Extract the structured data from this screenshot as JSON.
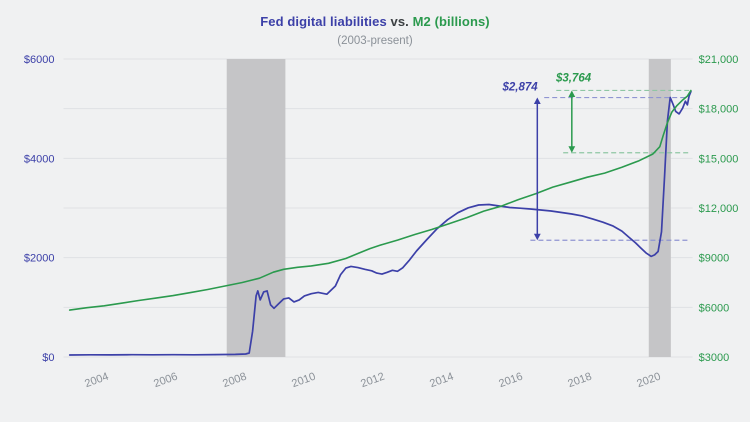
{
  "title": {
    "part1": "Fed digital liabilities",
    "part2": "vs.",
    "part3": "M2 (billions)"
  },
  "subtitle": "(2003-present)",
  "colors": {
    "background": "#f0f1f2",
    "blue": "#3c40a8",
    "green": "#2b9a4e",
    "blue_dash": "#9095d2",
    "green_dash": "#8fc6a4",
    "band": "#c5c5c7",
    "grid": "#dfe1e4",
    "axis_gray": "#8b9198",
    "vs_gray": "#3c4043"
  },
  "chart_data": {
    "type": "line",
    "title": "Fed digital liabilities vs. M2 (billions)",
    "subtitle": "(2003-present)",
    "grid": true,
    "legend_position": "none",
    "x_range": [
      2002.82,
      2021.05
    ],
    "x_ticks": [
      {
        "label": "2004",
        "value": 2004
      },
      {
        "label": "2006",
        "value": 2006
      },
      {
        "label": "2008",
        "value": 2008
      },
      {
        "label": "2010",
        "value": 2010
      },
      {
        "label": "2012",
        "value": 2012
      },
      {
        "label": "2014",
        "value": 2014
      },
      {
        "label": "2016",
        "value": 2016
      },
      {
        "label": "2018",
        "value": 2018
      },
      {
        "label": "2020",
        "value": 2020
      }
    ],
    "left_axis": {
      "range": [
        0,
        6000
      ],
      "ticks": [
        "$0",
        "$2000",
        "$4000",
        "$6000"
      ],
      "tick_values": [
        0,
        2000,
        4000,
        6000
      ],
      "color_ref": "blue"
    },
    "right_axis": {
      "range": [
        3000,
        21000
      ],
      "ticks": [
        "$3000",
        "$6000",
        "$9000",
        "$12,000",
        "$15,000",
        "$18,000",
        "$21,000"
      ],
      "tick_values": [
        3000,
        6000,
        9000,
        12000,
        15000,
        18000,
        21000
      ],
      "color_ref": "green"
    },
    "recession_bands": [
      [
        2007.55,
        2009.25
      ],
      [
        2019.78,
        2020.42
      ]
    ],
    "series": [
      {
        "id": "fed-digital-liabilities",
        "name": "Fed digital liabilities",
        "axis": "left",
        "color_ref": "blue",
        "width": 1.7,
        "points": [
          [
            2003.0,
            40
          ],
          [
            2003.6,
            44
          ],
          [
            2004.2,
            42
          ],
          [
            2004.8,
            46
          ],
          [
            2005.4,
            44
          ],
          [
            2006.0,
            46
          ],
          [
            2006.6,
            45
          ],
          [
            2007.2,
            48
          ],
          [
            2007.8,
            52
          ],
          [
            2008.1,
            60
          ],
          [
            2008.2,
            80
          ],
          [
            2008.3,
            520
          ],
          [
            2008.4,
            1230
          ],
          [
            2008.45,
            1330
          ],
          [
            2008.52,
            1150
          ],
          [
            2008.62,
            1310
          ],
          [
            2008.72,
            1330
          ],
          [
            2008.82,
            1050
          ],
          [
            2008.92,
            980
          ],
          [
            2009.05,
            1070
          ],
          [
            2009.2,
            1170
          ],
          [
            2009.35,
            1190
          ],
          [
            2009.5,
            1110
          ],
          [
            2009.65,
            1150
          ],
          [
            2009.8,
            1230
          ],
          [
            2010.0,
            1275
          ],
          [
            2010.2,
            1300
          ],
          [
            2010.45,
            1265
          ],
          [
            2010.7,
            1430
          ],
          [
            2010.85,
            1660
          ],
          [
            2011.0,
            1790
          ],
          [
            2011.15,
            1825
          ],
          [
            2011.35,
            1800
          ],
          [
            2011.55,
            1765
          ],
          [
            2011.75,
            1735
          ],
          [
            2011.9,
            1690
          ],
          [
            2012.05,
            1670
          ],
          [
            2012.2,
            1705
          ],
          [
            2012.35,
            1745
          ],
          [
            2012.5,
            1725
          ],
          [
            2012.65,
            1795
          ],
          [
            2012.85,
            1955
          ],
          [
            2013.05,
            2135
          ],
          [
            2013.35,
            2365
          ],
          [
            2013.65,
            2585
          ],
          [
            2013.95,
            2765
          ],
          [
            2014.25,
            2905
          ],
          [
            2014.55,
            3005
          ],
          [
            2014.85,
            3060
          ],
          [
            2015.15,
            3070
          ],
          [
            2015.45,
            3040
          ],
          [
            2015.75,
            3010
          ],
          [
            2016.05,
            2995
          ],
          [
            2016.35,
            2980
          ],
          [
            2016.65,
            2960
          ],
          [
            2016.95,
            2940
          ],
          [
            2017.25,
            2910
          ],
          [
            2017.55,
            2880
          ],
          [
            2017.85,
            2840
          ],
          [
            2018.15,
            2780
          ],
          [
            2018.45,
            2715
          ],
          [
            2018.75,
            2635
          ],
          [
            2019.0,
            2535
          ],
          [
            2019.2,
            2415
          ],
          [
            2019.4,
            2295
          ],
          [
            2019.55,
            2195
          ],
          [
            2019.7,
            2095
          ],
          [
            2019.85,
            2025
          ],
          [
            2019.95,
            2055
          ],
          [
            2020.05,
            2125
          ],
          [
            2020.15,
            2520
          ],
          [
            2020.24,
            3650
          ],
          [
            2020.32,
            4750
          ],
          [
            2020.4,
            5224
          ],
          [
            2020.48,
            5095
          ],
          [
            2020.56,
            4945
          ],
          [
            2020.66,
            4895
          ],
          [
            2020.76,
            5010
          ],
          [
            2020.84,
            5150
          ],
          [
            2020.9,
            5075
          ],
          [
            2020.95,
            5255
          ],
          [
            2021.0,
            5345
          ]
        ]
      },
      {
        "id": "m2",
        "name": "M2",
        "axis": "right",
        "color_ref": "green",
        "width": 1.6,
        "points": [
          [
            2003.0,
            5830
          ],
          [
            2003.5,
            5980
          ],
          [
            2004.0,
            6090
          ],
          [
            2004.5,
            6250
          ],
          [
            2005.0,
            6410
          ],
          [
            2005.5,
            6560
          ],
          [
            2006.0,
            6710
          ],
          [
            2006.5,
            6890
          ],
          [
            2007.0,
            7080
          ],
          [
            2007.5,
            7290
          ],
          [
            2008.0,
            7500
          ],
          [
            2008.5,
            7760
          ],
          [
            2008.9,
            8120
          ],
          [
            2009.2,
            8300
          ],
          [
            2009.6,
            8420
          ],
          [
            2010.0,
            8500
          ],
          [
            2010.5,
            8660
          ],
          [
            2011.0,
            8950
          ],
          [
            2011.35,
            9250
          ],
          [
            2011.7,
            9550
          ],
          [
            2012.0,
            9760
          ],
          [
            2012.5,
            10060
          ],
          [
            2013.0,
            10400
          ],
          [
            2013.5,
            10710
          ],
          [
            2014.0,
            11060
          ],
          [
            2014.5,
            11410
          ],
          [
            2015.0,
            11810
          ],
          [
            2015.5,
            12110
          ],
          [
            2016.0,
            12510
          ],
          [
            2016.5,
            12860
          ],
          [
            2017.0,
            13260
          ],
          [
            2017.5,
            13560
          ],
          [
            2018.0,
            13860
          ],
          [
            2018.5,
            14110
          ],
          [
            2019.0,
            14460
          ],
          [
            2019.5,
            14860
          ],
          [
            2019.9,
            15260
          ],
          [
            2020.1,
            15700
          ],
          [
            2020.2,
            16400
          ],
          [
            2020.32,
            17150
          ],
          [
            2020.45,
            17800
          ],
          [
            2020.6,
            18200
          ],
          [
            2020.75,
            18500
          ],
          [
            2020.9,
            18760
          ],
          [
            2021.0,
            19100
          ]
        ]
      }
    ],
    "annotations": [
      {
        "id": "fed-gap",
        "label": "$2,874",
        "axis": "left",
        "arrow_x": 2016.55,
        "top_value": 5224,
        "bottom_value": 2350,
        "dash_start_top": 2016.75,
        "dash_start_bottom": 2016.35,
        "dash_end": 2020.95,
        "label_x": 2016.05,
        "label_dy": 7,
        "color_ref": "blue",
        "dash_color_ref": "blue_dash"
      },
      {
        "id": "m2-gap",
        "label": "$3,764",
        "axis": "right",
        "arrow_x": 2017.55,
        "top_value": 19100,
        "bottom_value": 15336,
        "dash_start_top": 2017.1,
        "dash_start_bottom": 2017.3,
        "dash_end": 2020.95,
        "label_x": 2017.6,
        "label_dy": 9,
        "color_ref": "green",
        "dash_color_ref": "green_dash"
      }
    ]
  }
}
